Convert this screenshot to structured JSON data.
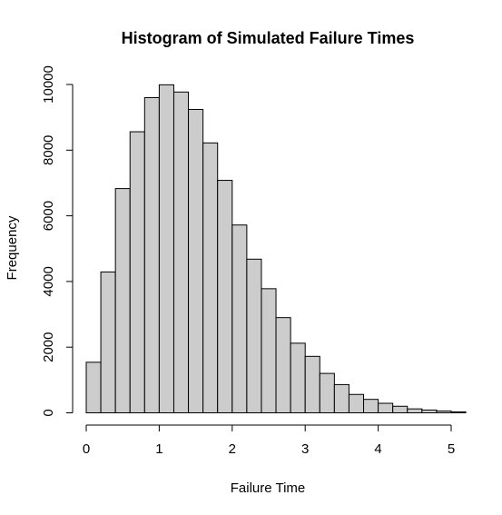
{
  "chart_data": {
    "type": "bar",
    "title": "Histogram of Simulated Failure Times",
    "xlabel": "Failure Time",
    "ylabel": "Frequency",
    "bin_width": 0.2,
    "bin_start": 0,
    "xlim": [
      0,
      5.2
    ],
    "ylim": [
      0,
      10000
    ],
    "x_ticks": [
      0,
      1,
      2,
      3,
      4,
      5
    ],
    "y_ticks": [
      0,
      2000,
      4000,
      6000,
      8000,
      10000
    ],
    "values": [
      1540,
      4290,
      6830,
      8560,
      9600,
      9990,
      9770,
      9240,
      8220,
      7080,
      5720,
      4680,
      3780,
      2900,
      2120,
      1720,
      1200,
      860,
      560,
      410,
      290,
      200,
      120,
      85,
      55,
      30
    ],
    "bar_fill": "#cccccc",
    "bar_stroke": "#000000",
    "grid": false,
    "legend": "none"
  }
}
